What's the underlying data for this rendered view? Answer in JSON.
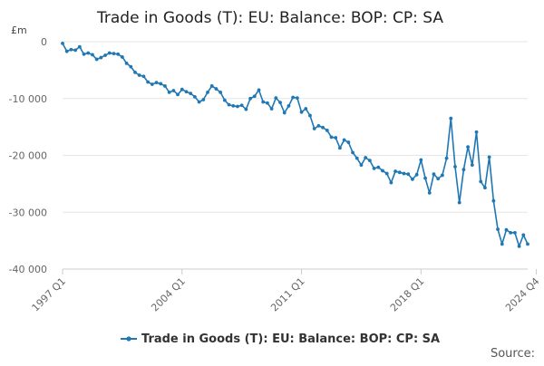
{
  "chart_data": {
    "type": "line",
    "title": "Trade in Goods (T): EU: Balance: BOP: CP: SA",
    "unit_label": "£m",
    "source_label": "Source:",
    "legend_placement": "bottom-center",
    "grid": true,
    "color": "#1f77b4",
    "ylim": [
      -40000,
      0
    ],
    "yticks": [
      0,
      -10000,
      -20000,
      -30000,
      -40000
    ],
    "ytick_labels": [
      "0",
      "-10 000",
      "-20 000",
      "-30 000",
      "-40 000"
    ],
    "xticks": [
      "1997 Q1",
      "2004 Q1",
      "2011 Q1",
      "2018 Q1",
      "2024 Q4"
    ],
    "series": [
      {
        "name": "Trade in Goods (T): EU: Balance: BOP: CP: SA",
        "values": [
          -300,
          -1700,
          -1400,
          -1500,
          -900,
          -2200,
          -2000,
          -2300,
          -3100,
          -2800,
          -2400,
          -2000,
          -2100,
          -2200,
          -2700,
          -3800,
          -4400,
          -5400,
          -5900,
          -6100,
          -7100,
          -7500,
          -7200,
          -7400,
          -7800,
          -8900,
          -8600,
          -9300,
          -8400,
          -8800,
          -9100,
          -9700,
          -10600,
          -10200,
          -8900,
          -7800,
          -8300,
          -8900,
          -10300,
          -11100,
          -11300,
          -11400,
          -11200,
          -11900,
          -10000,
          -9600,
          -8500,
          -10600,
          -10800,
          -11800,
          -9900,
          -10700,
          -12500,
          -11300,
          -9800,
          -9900,
          -12400,
          -11800,
          -13000,
          -15300,
          -14800,
          -15100,
          -15600,
          -16800,
          -16900,
          -18700,
          -17300,
          -17700,
          -19500,
          -20500,
          -21700,
          -20400,
          -20900,
          -22300,
          -22100,
          -22700,
          -23200,
          -24800,
          -22800,
          -23000,
          -23200,
          -23300,
          -24200,
          -23400,
          -20800,
          -24000,
          -26600,
          -23300,
          -24100,
          -23500,
          -20500,
          -13500,
          -22000,
          -28300,
          -22500,
          -18500,
          -21700,
          -15900,
          -24600,
          -25700,
          -20300,
          -28000,
          -33000,
          -35600,
          -33100,
          -33600,
          -33600,
          -36000,
          -34000,
          -35600
        ]
      }
    ]
  }
}
